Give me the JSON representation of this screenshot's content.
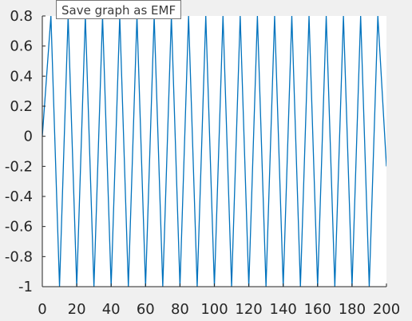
{
  "tooltip": {
    "text": "Save graph as EMF"
  },
  "colors": {
    "line": "#0072bd",
    "plot_background": "#ffffff",
    "page_background": "#f0f0f0",
    "axis": "#262626"
  },
  "chart_data": {
    "type": "line",
    "title": "",
    "xlabel": "",
    "ylabel": "",
    "xlim": [
      0,
      200
    ],
    "ylim": [
      -1,
      0.8
    ],
    "grid": false,
    "x_ticks": [
      0,
      20,
      40,
      60,
      80,
      100,
      120,
      140,
      160,
      180,
      200
    ],
    "x_tick_labels": [
      "0",
      "20",
      "40",
      "60",
      "80",
      "100",
      "120",
      "140",
      "160",
      "180",
      "200"
    ],
    "y_ticks": [
      0.8,
      0.6,
      0.4,
      0.2,
      0,
      -0.2,
      -0.4,
      -0.6,
      -0.8,
      -1
    ],
    "y_tick_labels": [
      "0.8",
      "0.6",
      "0.4",
      "0.2",
      "0",
      "-0.2",
      "-0.4",
      "-0.6",
      "-0.8",
      "-1"
    ],
    "series": [
      {
        "x": [
          0,
          5,
          10,
          15,
          20,
          25,
          30,
          35,
          40,
          45,
          50,
          55,
          60,
          65,
          70,
          75,
          80,
          85,
          90,
          95,
          100,
          105,
          110,
          115,
          120,
          125,
          130,
          135,
          140,
          145,
          150,
          155,
          160,
          165,
          170,
          175,
          180,
          185,
          190,
          195,
          200
        ],
        "y": [
          0,
          0.8,
          -1,
          0.8,
          -1,
          0.8,
          -1,
          0.8,
          -1,
          0.8,
          -1,
          0.8,
          -1,
          0.8,
          -1,
          0.8,
          -1,
          0.8,
          -1,
          0.8,
          -1,
          0.8,
          -1,
          0.8,
          -1,
          0.8,
          -1,
          0.8,
          -1,
          0.8,
          -1,
          0.8,
          -1,
          0.8,
          -1,
          0.8,
          -1,
          0.8,
          -1,
          0.8,
          -0.2
        ]
      }
    ]
  }
}
